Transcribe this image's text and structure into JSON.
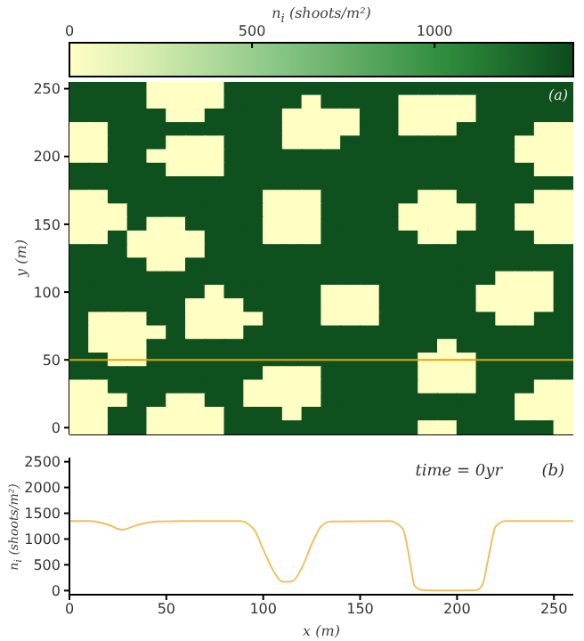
{
  "chart_data": [
    {
      "type": "heatmap",
      "clabel": "n$_{i}$ (shoots/m²)",
      "ylabel": "y (m)",
      "annotations": [
        "(a)"
      ],
      "categories": [
        null,
        null,
        null,
        null,
        null,
        null,
        null,
        null,
        null,
        null,
        null,
        null,
        null,
        null,
        null,
        null,
        null,
        null,
        null,
        null,
        null,
        null,
        null,
        null,
        null,
        null
      ],
      "y_categories": [
        "250",
        null,
        null,
        null,
        null,
        "200",
        null,
        null,
        null,
        null,
        "150",
        null,
        null,
        null,
        null,
        "100",
        null,
        null,
        null,
        null,
        "50",
        null,
        null,
        null,
        null,
        "0"
      ],
      "cells": [
        [
          1350,
          1350,
          1350,
          1350,
          0,
          0,
          0,
          0,
          1350,
          1350,
          1350,
          1350,
          1350,
          1350,
          1350,
          1350,
          1350,
          1350,
          1350,
          1350,
          1350,
          1350,
          1350,
          1350,
          1350,
          1350
        ],
        [
          1350,
          1350,
          1350,
          1350,
          0,
          0,
          0,
          0,
          1350,
          1350,
          1350,
          1350,
          0,
          1350,
          1350,
          1350,
          1350,
          0,
          0,
          0,
          0,
          1350,
          1350,
          1350,
          1350,
          1350
        ],
        [
          1350,
          1350,
          1350,
          1350,
          1350,
          0,
          0,
          1350,
          1350,
          1350,
          1350,
          0,
          0,
          0,
          0,
          1350,
          1350,
          0,
          0,
          0,
          0,
          1350,
          1350,
          1350,
          1350,
          1350
        ],
        [
          0,
          0,
          1350,
          1350,
          1350,
          1350,
          1350,
          1350,
          1350,
          1350,
          1350,
          0,
          0,
          0,
          0,
          1350,
          1350,
          0,
          0,
          0,
          1350,
          1350,
          1350,
          1350,
          0,
          0
        ],
        [
          0,
          0,
          1350,
          1350,
          1350,
          0,
          0,
          0,
          1350,
          1350,
          1350,
          0,
          0,
          0,
          1350,
          1350,
          1350,
          1350,
          1350,
          1350,
          1350,
          1350,
          1350,
          0,
          0,
          0
        ],
        [
          0,
          0,
          1350,
          1350,
          0,
          0,
          0,
          0,
          1350,
          1350,
          1350,
          1350,
          1350,
          1350,
          1350,
          1350,
          1350,
          1350,
          1350,
          1350,
          1350,
          1350,
          1350,
          0,
          0,
          0
        ],
        [
          1350,
          1350,
          1350,
          1350,
          1350,
          0,
          0,
          0,
          1350,
          1350,
          1350,
          1350,
          1350,
          1350,
          1350,
          1350,
          1350,
          1350,
          1350,
          1350,
          1350,
          1350,
          1350,
          1350,
          0,
          0
        ],
        [
          1350,
          1350,
          1350,
          1350,
          1350,
          1350,
          1350,
          1350,
          1350,
          1350,
          1350,
          1350,
          1350,
          1350,
          1350,
          1350,
          1350,
          1350,
          1350,
          1350,
          1350,
          1350,
          1350,
          1350,
          1350,
          1350
        ],
        [
          0,
          0,
          1350,
          1350,
          1350,
          1350,
          1350,
          1350,
          1350,
          1350,
          0,
          0,
          0,
          1350,
          1350,
          1350,
          1350,
          1350,
          0,
          0,
          1350,
          1350,
          1350,
          1350,
          0,
          0
        ],
        [
          0,
          0,
          0,
          1350,
          1350,
          1350,
          1350,
          1350,
          1350,
          1350,
          0,
          0,
          0,
          1350,
          1350,
          1350,
          1350,
          0,
          0,
          0,
          0,
          1350,
          1350,
          0,
          0,
          0
        ],
        [
          0,
          0,
          0,
          1350,
          0,
          0,
          1350,
          1350,
          1350,
          1350,
          0,
          0,
          0,
          1350,
          1350,
          1350,
          1350,
          0,
          0,
          0,
          0,
          1350,
          1350,
          0,
          0,
          0
        ],
        [
          0,
          0,
          1350,
          0,
          0,
          0,
          0,
          1350,
          1350,
          1350,
          0,
          0,
          0,
          1350,
          1350,
          1350,
          1350,
          1350,
          0,
          0,
          1350,
          1350,
          1350,
          1350,
          0,
          0
        ],
        [
          1350,
          1350,
          1350,
          0,
          0,
          0,
          0,
          1350,
          1350,
          1350,
          1350,
          1350,
          1350,
          1350,
          1350,
          1350,
          1350,
          1350,
          1350,
          1350,
          1350,
          1350,
          1350,
          1350,
          1350,
          1350
        ],
        [
          1350,
          1350,
          1350,
          1350,
          0,
          0,
          1350,
          1350,
          1350,
          1350,
          1350,
          1350,
          1350,
          1350,
          1350,
          1350,
          1350,
          1350,
          1350,
          1350,
          1350,
          1350,
          1350,
          1350,
          1350,
          1350
        ],
        [
          1350,
          1350,
          1350,
          1350,
          1350,
          1350,
          1350,
          1350,
          1350,
          1350,
          1350,
          1350,
          1350,
          1350,
          1350,
          1350,
          1350,
          1350,
          1350,
          1350,
          1350,
          1350,
          0,
          0,
          0,
          1350
        ],
        [
          1350,
          1350,
          1350,
          1350,
          1350,
          1350,
          1350,
          0,
          1350,
          1350,
          1350,
          1350,
          1350,
          0,
          0,
          0,
          1350,
          1350,
          1350,
          1350,
          1350,
          0,
          0,
          0,
          0,
          1350
        ],
        [
          1350,
          1350,
          1350,
          1350,
          1350,
          1350,
          0,
          0,
          0,
          1350,
          1350,
          1350,
          1350,
          0,
          0,
          0,
          1350,
          1350,
          1350,
          1350,
          1350,
          0,
          0,
          0,
          0,
          1350
        ],
        [
          1350,
          0,
          0,
          0,
          1350,
          1350,
          0,
          0,
          0,
          0,
          1350,
          1350,
          1350,
          0,
          0,
          0,
          1350,
          1350,
          1350,
          1350,
          1350,
          1350,
          0,
          0,
          1350,
          1350
        ],
        [
          1350,
          0,
          0,
          0,
          0,
          1350,
          0,
          0,
          0,
          1350,
          1350,
          1350,
          1350,
          1350,
          1350,
          1350,
          1350,
          1350,
          1350,
          1350,
          1350,
          1350,
          1350,
          1350,
          1350,
          1350
        ],
        [
          1350,
          0,
          0,
          0,
          1350,
          1350,
          1350,
          1350,
          1350,
          1350,
          1350,
          1350,
          1350,
          1350,
          1350,
          1350,
          1350,
          1350,
          1350,
          0,
          1350,
          1350,
          1350,
          1350,
          1350,
          1350
        ],
        [
          1350,
          1350,
          0,
          0,
          1350,
          1350,
          1350,
          1350,
          1350,
          1350,
          1350,
          1350,
          1350,
          1350,
          1350,
          1350,
          1350,
          1350,
          0,
          0,
          0,
          1350,
          1350,
          1350,
          1350,
          1350
        ],
        [
          1350,
          1350,
          1350,
          1350,
          1350,
          1350,
          1350,
          1350,
          1350,
          1350,
          0,
          0,
          0,
          1350,
          1350,
          1350,
          1350,
          1350,
          0,
          0,
          0,
          1350,
          1350,
          1350,
          1350,
          1350
        ],
        [
          0,
          0,
          1350,
          1350,
          1350,
          1350,
          1350,
          1350,
          1350,
          0,
          0,
          0,
          0,
          1350,
          1350,
          1350,
          1350,
          1350,
          0,
          0,
          0,
          1350,
          1350,
          1350,
          0,
          0
        ],
        [
          0,
          0,
          0,
          1350,
          1350,
          0,
          0,
          1350,
          1350,
          0,
          0,
          0,
          0,
          1350,
          1350,
          1350,
          1350,
          1350,
          1350,
          1350,
          1350,
          1350,
          1350,
          0,
          0,
          0
        ],
        [
          0,
          0,
          1350,
          1350,
          0,
          0,
          0,
          0,
          1350,
          1350,
          1350,
          0,
          1350,
          1350,
          1350,
          1350,
          1350,
          1350,
          1350,
          1350,
          1350,
          1350,
          1350,
          0,
          0,
          0
        ],
        [
          0,
          0,
          1350,
          1350,
          0,
          0,
          0,
          0,
          1350,
          1350,
          1350,
          1350,
          1350,
          1350,
          1350,
          1350,
          1350,
          1350,
          0,
          0,
          1350,
          1350,
          1350,
          1350,
          1350,
          0
        ]
      ],
      "clim": [
        0,
        1380
      ],
      "cticks": [
        0,
        500,
        1000
      ],
      "ref_lines": [
        {
          "axis": "y",
          "value": "50",
          "color": "#e0a800"
        }
      ]
    },
    {
      "type": "line",
      "xlabel": "x (m)",
      "ylabel": "n$_{i}$ (shoots/m²)",
      "annotations": [
        "time = 0yr",
        "(b)"
      ],
      "x": [
        0,
        10,
        20,
        27,
        35,
        45,
        60,
        88,
        95,
        100,
        105,
        110,
        115,
        120,
        125,
        130,
        135,
        165,
        172,
        176,
        178,
        182,
        195,
        210,
        213,
        216,
        220,
        225,
        260
      ],
      "series": [
        {
          "color": "#f0c060",
          "values": [
            1350,
            1350,
            1280,
            1180,
            1270,
            1340,
            1350,
            1350,
            1200,
            800,
            400,
            170,
            180,
            450,
            900,
            1250,
            1340,
            1350,
            1200,
            500,
            100,
            10,
            0,
            10,
            100,
            600,
            1250,
            1350,
            1350
          ]
        }
      ],
      "xlim": [
        0,
        260
      ],
      "ylim": [
        -80,
        2580
      ],
      "xticks": [
        0,
        50,
        100,
        150,
        200,
        250
      ],
      "yticks": [
        0,
        500,
        1000,
        1500,
        2000,
        2500
      ]
    }
  ]
}
